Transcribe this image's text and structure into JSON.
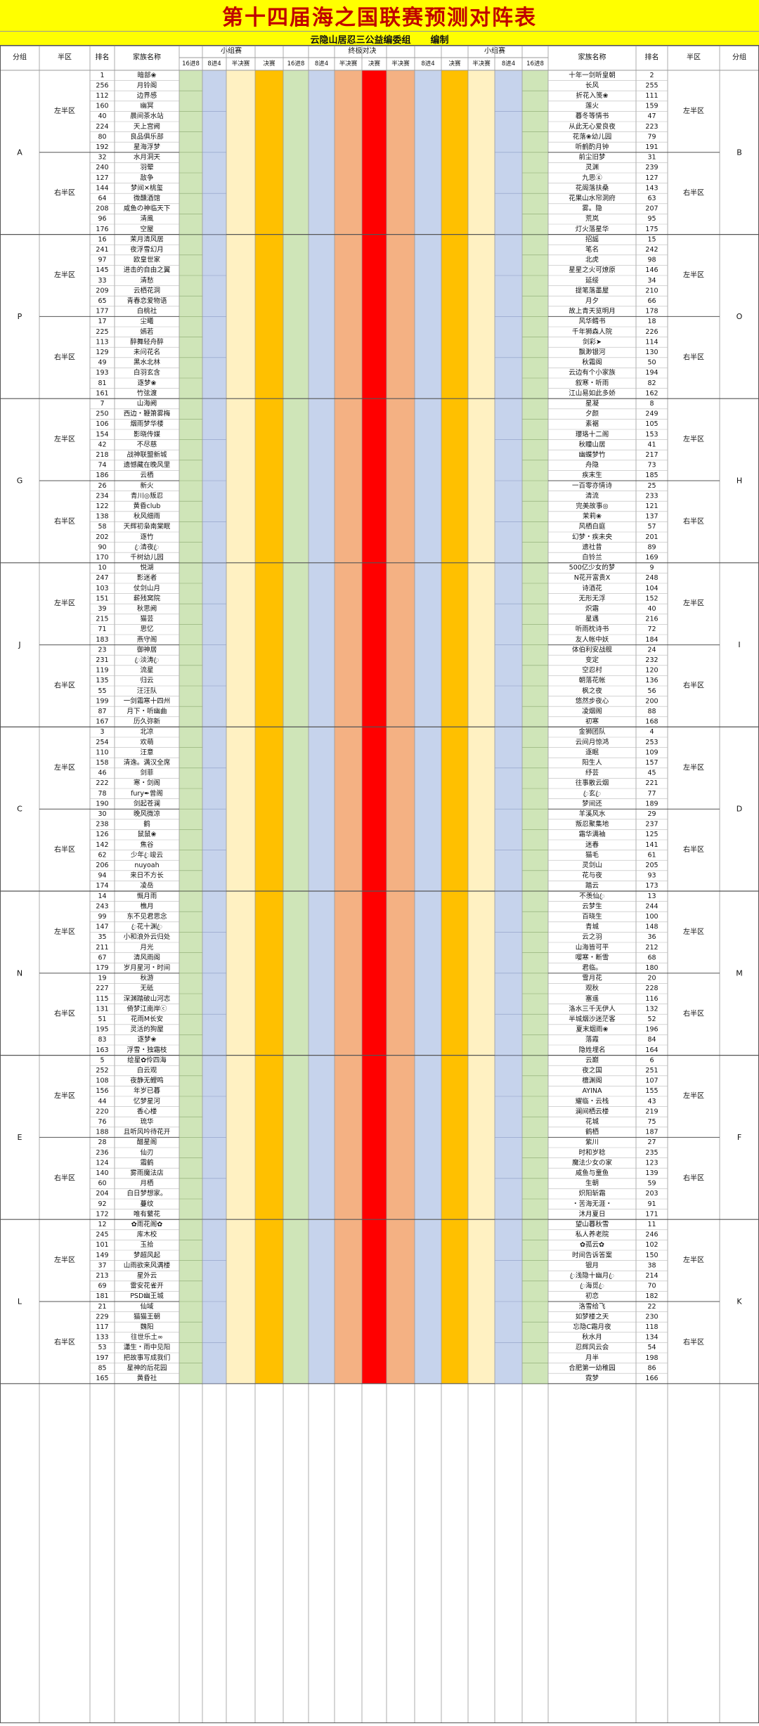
{
  "title": "第十四届海之国联赛预测对阵表",
  "subtitle": {
    "organizer": "云隐山居忍三公益编委组",
    "role": "编制"
  },
  "header": {
    "group": "分组",
    "half": "半区",
    "rank": "排名",
    "family": "家族名称",
    "small_group": "小组赛",
    "final_stage": "终极对决",
    "r16": "16进8",
    "r8": "8进4",
    "semi": "半决赛",
    "final": "决赛",
    "mid": "半决赛"
  },
  "colors": {
    "title_bg": "#ffff00",
    "title_text": "#c00000",
    "r16": "#cfe5b8",
    "r8": "#c6d3ec",
    "semi": "#fff1c2",
    "final_small": "#ffc000",
    "final_semi": "#f4b183",
    "final": "#ff0000",
    "grid": "#999999"
  },
  "half_labels": {
    "upper": "左半区",
    "lower": "右半区",
    "upper_right": "左半区",
    "lower_right": "右半区"
  },
  "groups": [
    {
      "left": "A",
      "right": "B",
      "left_rows": [
        [
          "1",
          "暗部❀"
        ],
        [
          "256",
          "月铃阁"
        ],
        [
          "112",
          "边界感"
        ],
        [
          "160",
          "幽冥"
        ],
        [
          "40",
          "晨间茶水站"
        ],
        [
          "224",
          "天上宫阙"
        ],
        [
          "80",
          "良品俱乐部"
        ],
        [
          "192",
          "星海浮梦"
        ],
        [
          "32",
          "水月洞天"
        ],
        [
          "240",
          "羽翚"
        ],
        [
          "127",
          "敌争"
        ],
        [
          "144",
          "梦间✕桃玺"
        ],
        [
          "64",
          "微醺酒馆"
        ],
        [
          "208",
          "咸鱼の神临天下"
        ],
        [
          "96",
          "清風"
        ],
        [
          "176",
          "空屋"
        ]
      ],
      "right_rows": [
        [
          "十年一剑听皇朝",
          "2"
        ],
        [
          "长风",
          "255"
        ],
        [
          "折花入笺❀",
          "111"
        ],
        [
          "莲火",
          "159"
        ],
        [
          "暮冬等情书",
          "47"
        ],
        [
          "从此无心爱良夜",
          "223"
        ],
        [
          "花落❀幼儿园",
          "79"
        ],
        [
          "听鹤酌月钟",
          "191"
        ],
        [
          "前尘旧梦",
          "31"
        ],
        [
          "灵渊",
          "239"
        ],
        [
          "九思ⓖ",
          "127"
        ],
        [
          "花阁落扶桑",
          "143"
        ],
        [
          "花果山水帘洞府",
          "63"
        ],
        [
          "雾。隐",
          "207"
        ],
        [
          "荒岚",
          "95"
        ],
        [
          "灯火落星华",
          "175"
        ]
      ]
    },
    {
      "left": "P",
      "right": "O",
      "left_rows": [
        [
          "16",
          "茉月清风居"
        ],
        [
          "241",
          "夜浮雪幻月"
        ],
        [
          "97",
          "欧皇世家"
        ],
        [
          "145",
          "进击的自由之翼"
        ],
        [
          "33",
          "清愁"
        ],
        [
          "209",
          "云栖花洞"
        ],
        [
          "65",
          "青春恋爱物语"
        ],
        [
          "177",
          "白桃社"
        ],
        [
          "17",
          "尘曦"
        ],
        [
          "225",
          "嫣若"
        ],
        [
          "113",
          "醉舞轻舟醉"
        ],
        [
          "129",
          "未问花名"
        ],
        [
          "49",
          "黑水北林"
        ],
        [
          "193",
          "白羽玄含"
        ],
        [
          "81",
          "逐梦❀"
        ],
        [
          "161",
          "竹弦渡"
        ]
      ],
      "right_rows": [
        [
          "招謡",
          "15"
        ],
        [
          "笔名",
          "242"
        ],
        [
          "北虎",
          "98"
        ],
        [
          "星星之火可燎原",
          "146"
        ],
        [
          "延绥",
          "34"
        ],
        [
          "提笔落墨屋",
          "210"
        ],
        [
          "月夕",
          "66"
        ],
        [
          "故上青天览明月",
          "178"
        ],
        [
          "风华鳕书",
          "18"
        ],
        [
          "千年狮森人院",
          "226"
        ],
        [
          "剑彩➤",
          "114"
        ],
        [
          "飘渺银河",
          "130"
        ],
        [
          "秋霜阁",
          "50"
        ],
        [
          "云边有个小家族",
          "194"
        ],
        [
          "叙寒・听雨",
          "82"
        ],
        [
          "江山易如此多娇",
          "162"
        ]
      ]
    },
    {
      "left": "G",
      "right": "H",
      "left_rows": [
        [
          "7",
          "山海阙"
        ],
        [
          "250",
          "西边・鞭箫雾梅"
        ],
        [
          "106",
          "烟雨梦华楼"
        ],
        [
          "154",
          "影晓传媒"
        ],
        [
          "42",
          "不尽慈"
        ],
        [
          "218",
          "战神联盟新城"
        ],
        [
          "74",
          "遗憾藏在晚风里"
        ],
        [
          "186",
          "云栖"
        ],
        [
          "26",
          "新火"
        ],
        [
          "234",
          "青川◎叛忍"
        ],
        [
          "122",
          "黄昏club"
        ],
        [
          "138",
          "秋风细雨"
        ],
        [
          "58",
          "天辉初枭南棠眠"
        ],
        [
          "202",
          "逐竹"
        ],
        [
          "90",
          "ꦿ清夜ꦿ"
        ],
        [
          "170",
          "千树幼儿园"
        ]
      ],
      "right_rows": [
        [
          "星凝",
          "8"
        ],
        [
          "夕颜",
          "249"
        ],
        [
          "素裾",
          "105"
        ],
        [
          "瓔珞十二阁",
          "153"
        ],
        [
          "秋瞳山居",
          "41"
        ],
        [
          "幽蝶梦竹",
          "217"
        ],
        [
          "舟隐",
          "73"
        ],
        [
          "疾末生",
          "185"
        ],
        [
          "一百零亦情诗",
          "25"
        ],
        [
          "清流",
          "233"
        ],
        [
          "完美故事◎",
          "121"
        ],
        [
          "茉莉❀",
          "137"
        ],
        [
          "风栖白庭",
          "57"
        ],
        [
          "幻梦・疾未央",
          "201"
        ],
        [
          "遗社昔",
          "89"
        ],
        [
          "白铃兰",
          "169"
        ]
      ]
    },
    {
      "left": "J",
      "right": "I",
      "left_rows": [
        [
          "10",
          "悦湖"
        ],
        [
          "247",
          "影迷者"
        ],
        [
          "103",
          "仗剑山月"
        ],
        [
          "151",
          "薪残窝院"
        ],
        [
          "39",
          "秋思阙"
        ],
        [
          "215",
          "猫芸"
        ],
        [
          "71",
          "思忆"
        ],
        [
          "183",
          "燕守阁"
        ],
        [
          "23",
          "御神居"
        ],
        [
          "231",
          "ꦿ淡涛ꦿ"
        ],
        [
          "119",
          "流星"
        ],
        [
          "135",
          "归云"
        ],
        [
          "55",
          "汪汪队"
        ],
        [
          "199",
          "一剑霜寒十四州"
        ],
        [
          "87",
          "月下・听幽曲"
        ],
        [
          "167",
          "历久弥新"
        ]
      ],
      "right_rows": [
        [
          "500亿少女的梦",
          "9"
        ],
        [
          "N花开富贵X",
          "248"
        ],
        [
          "诗酒花",
          "104"
        ],
        [
          "无形无浮",
          "152"
        ],
        [
          "炽霜",
          "40"
        ],
        [
          "星遇",
          "216"
        ],
        [
          "听雨枕诗书",
          "72"
        ],
        [
          "友人帐中妖",
          "184"
        ],
        [
          "体伯利安战舰",
          "24"
        ],
        [
          "变定",
          "232"
        ],
        [
          "空忍村",
          "120"
        ],
        [
          "朝落花帐",
          "136"
        ],
        [
          "枫之夜",
          "56"
        ],
        [
          "悠然步夜心",
          "200"
        ],
        [
          "凌烟阁",
          "88"
        ],
        [
          "初寒",
          "168"
        ]
      ]
    },
    {
      "left": "C",
      "right": "D",
      "left_rows": [
        [
          "3",
          "北凉"
        ],
        [
          "254",
          "欢萌"
        ],
        [
          "110",
          "汪意"
        ],
        [
          "158",
          "清逸。满汉全席"
        ],
        [
          "46",
          "剑菲"
        ],
        [
          "222",
          "寒・剑阁"
        ],
        [
          "78",
          "fury✒曾阁"
        ],
        [
          "190",
          "剑起苍澜"
        ],
        [
          "30",
          "晚风微凉"
        ],
        [
          "238",
          "鹤"
        ],
        [
          "126",
          "鼠鼠❀"
        ],
        [
          "142",
          "焦谷"
        ],
        [
          "62",
          "少年ꦿ竣云"
        ],
        [
          "206",
          "nuyoah"
        ],
        [
          "94",
          "来日不方长"
        ],
        [
          "174",
          "凌岳"
        ]
      ],
      "right_rows": [
        [
          "金狮团队",
          "4"
        ],
        [
          "云间月惊鸿",
          "253"
        ],
        [
          "逐眠",
          "109"
        ],
        [
          "阳生人",
          "157"
        ],
        [
          "纾芸",
          "45"
        ],
        [
          "往事散云烟",
          "221"
        ],
        [
          "ꦿ玄ꦿ",
          "77"
        ],
        [
          "梦间还",
          "189"
        ],
        [
          "羊溪风水",
          "29"
        ],
        [
          "叛忍聚集地",
          "237"
        ],
        [
          "霜华满袖",
          "125"
        ],
        [
          "迷春",
          "141"
        ],
        [
          "猫毛",
          "61"
        ],
        [
          "灵剑山",
          "205"
        ],
        [
          "花与夜",
          "93"
        ],
        [
          "踏云",
          "173"
        ]
      ]
    },
    {
      "left": "N",
      "right": "M",
      "left_rows": [
        [
          "14",
          "慨月雨"
        ],
        [
          "243",
          "樵月"
        ],
        [
          "99",
          "东不见君思念"
        ],
        [
          "147",
          "ꦿ花十渊ꦿ"
        ],
        [
          "35",
          "小和浪外云归处"
        ],
        [
          "211",
          "月光"
        ],
        [
          "67",
          "清风雨阁"
        ],
        [
          "179",
          "岁月星河・时间"
        ],
        [
          "19",
          "秋游"
        ],
        [
          "227",
          "无砥"
        ],
        [
          "115",
          "深渊踏破山河志"
        ],
        [
          "131",
          "倚梦江南岸ⓒ"
        ],
        [
          "51",
          "花雨M长安"
        ],
        [
          "195",
          "灵活的狗屋"
        ],
        [
          "83",
          "逐梦❀"
        ],
        [
          "163",
          "浮雪・独霜枝"
        ]
      ],
      "right_rows": [
        [
          "不羡仙ꦿ",
          "13"
        ],
        [
          "云梦生",
          "244"
        ],
        [
          "百晓生",
          "100"
        ],
        [
          "青城",
          "148"
        ],
        [
          "云之羽",
          "36"
        ],
        [
          "山海皆可平",
          "212"
        ],
        [
          "嘤寒・断雪",
          "68"
        ],
        [
          "君临。",
          "180"
        ],
        [
          "雪月花",
          "20"
        ],
        [
          "观秋",
          "228"
        ],
        [
          "塞遥",
          "116"
        ],
        [
          "洛水三千无伊人",
          "132"
        ],
        [
          "半城烟沙迷茫客",
          "52"
        ],
        [
          "夏末烟雨❀",
          "196"
        ],
        [
          "落霞",
          "84"
        ],
        [
          "隐姓埋名",
          "164"
        ]
      ]
    },
    {
      "left": "E",
      "right": "F",
      "left_rows": [
        [
          "5",
          "绘星✿伶四海"
        ],
        [
          "252",
          "白云观"
        ],
        [
          "108",
          "夜静无鲤鸣"
        ],
        [
          "156",
          "年岁已暮"
        ],
        [
          "44",
          "忆梦星河"
        ],
        [
          "220",
          "香心楼"
        ],
        [
          "76",
          "琉华"
        ],
        [
          "188",
          "且听风吟待花开"
        ],
        [
          "28",
          "醋星阁"
        ],
        [
          "236",
          "仙刃"
        ],
        [
          "124",
          "霜鹤"
        ],
        [
          "140",
          "雾雨魔法店"
        ],
        [
          "60",
          "月栖"
        ],
        [
          "204",
          "白日梦想家。"
        ],
        [
          "92",
          "蔓纹"
        ],
        [
          "172",
          "唯有蘩花"
        ]
      ],
      "right_rows": [
        [
          "云巅",
          "6"
        ],
        [
          "夜之国",
          "251"
        ],
        [
          "檀渊阁",
          "107"
        ],
        [
          "AYINA",
          "155"
        ],
        [
          "耀临・云栈",
          "43"
        ],
        [
          "澜间栖云楼",
          "219"
        ],
        [
          "花城",
          "75"
        ],
        [
          "鹤栖",
          "187"
        ],
        [
          "紫川",
          "27"
        ],
        [
          "时和岁稔",
          "235"
        ],
        [
          "魔法少女の家",
          "123"
        ],
        [
          "咸鱼与童鱼",
          "139"
        ],
        [
          "生朝",
          "59"
        ],
        [
          "炽阳斩霜",
          "203"
        ],
        [
          "・苦海无涯・",
          "91"
        ],
        [
          "沐月夏日",
          "171"
        ]
      ]
    },
    {
      "left": "L",
      "right": "K",
      "left_rows": [
        [
          "12",
          "✿雨花阁✿"
        ],
        [
          "245",
          "库木校"
        ],
        [
          "101",
          "玉拾"
        ],
        [
          "149",
          "梦超风起"
        ],
        [
          "37",
          "山雨欲来风满楼"
        ],
        [
          "213",
          "星外云"
        ],
        [
          "69",
          "雷安花雀开"
        ],
        [
          "181",
          "PSD幽王城"
        ],
        [
          "21",
          "仙域"
        ],
        [
          "229",
          "猫猫王朝"
        ],
        [
          "117",
          "魏阳"
        ],
        [
          "133",
          "往世乐土∞"
        ],
        [
          "53",
          "瀟生・雨中见阳"
        ],
        [
          "197",
          "把故事写成我们"
        ],
        [
          "85",
          "星神的后花园"
        ],
        [
          "165",
          "黄昏社"
        ]
      ],
      "right_rows": [
        [
          "望山暮秋雪",
          "11"
        ],
        [
          "私人养老院",
          "246"
        ],
        [
          "✿孤云✿",
          "102"
        ],
        [
          "时间告诉答案",
          "150"
        ],
        [
          "银月",
          "38"
        ],
        [
          "ꦿ浅隐十幽月ꦿ",
          "214"
        ],
        [
          "ꦿ海觅ꦿ",
          "70"
        ],
        [
          "初恋",
          "182"
        ],
        [
          "洛雪给飞",
          "22"
        ],
        [
          "如梦楼之天",
          "230"
        ],
        [
          "忘隐C霜月夜",
          "118"
        ],
        [
          "秋水月",
          "134"
        ],
        [
          "忍辉风云会",
          "54"
        ],
        [
          "月半",
          "198"
        ],
        [
          "合肥第一幼稚园",
          "86"
        ],
        [
          "霓梦",
          "166"
        ]
      ]
    }
  ]
}
